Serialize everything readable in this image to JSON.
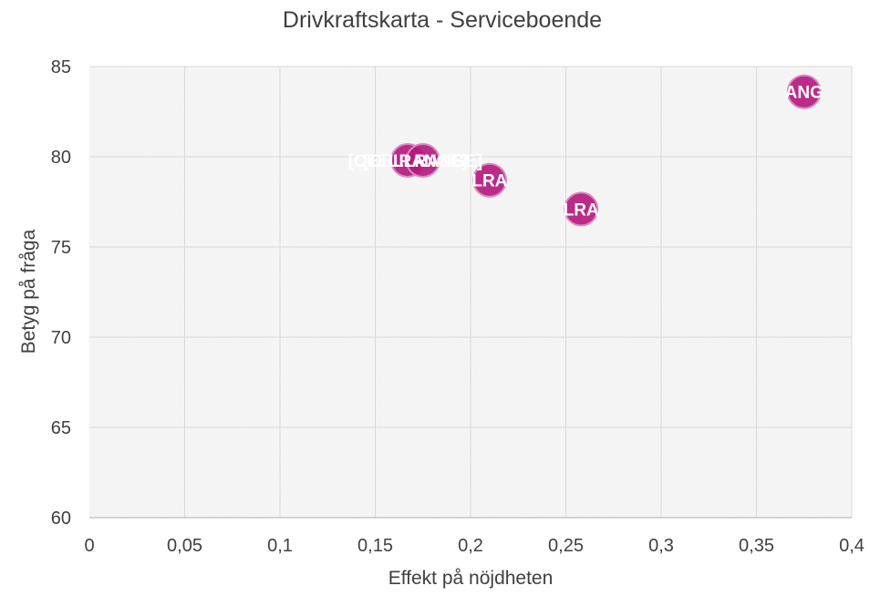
{
  "chart_data": {
    "type": "scatter",
    "title": "Drivkraftskarta - Serviceboende",
    "xlabel": "Effekt på nöjdheten",
    "ylabel": "Betyg på fråga",
    "xlim": [
      0,
      0.4
    ],
    "ylim": [
      60,
      85
    ],
    "x_ticks": [
      0,
      0.05,
      0.1,
      0.15,
      0.2,
      0.25,
      0.3,
      0.35,
      0.4
    ],
    "x_tick_labels": [
      "0",
      "0,05",
      "0,1",
      "0,15",
      "0,2",
      "0,25",
      "0,3",
      "0,35",
      "0,4"
    ],
    "y_ticks": [
      60,
      65,
      70,
      75,
      80,
      85
    ],
    "y_tick_labels": [
      "60",
      "65",
      "70",
      "75",
      "80",
      "85"
    ],
    "grid": true,
    "legend": "none",
    "marker_color": "#b5197e",
    "points": [
      {
        "x": 0.167,
        "y": 79.8,
        "label": "[CELLRANGE]"
      },
      {
        "x": 0.175,
        "y": 79.8,
        "label": "[CELLRANGE]"
      },
      {
        "x": 0.21,
        "y": 78.7,
        "label": "LRA"
      },
      {
        "x": 0.258,
        "y": 77.1,
        "label": "LRA"
      },
      {
        "x": 0.375,
        "y": 83.6,
        "label": "ANG"
      }
    ]
  }
}
